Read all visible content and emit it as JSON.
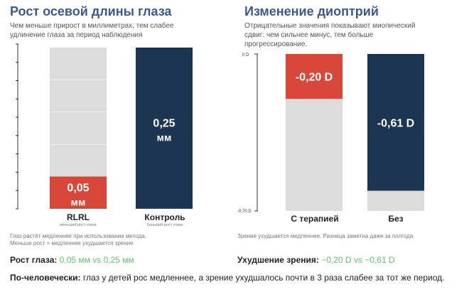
{
  "left_panel": {
    "title": "Рост осевой длины глаза",
    "subtitle_line1": "Чем меньше прирост в миллиметрах, тем слабее",
    "subtitle_line2": "удлинение глаза за период наблюдения",
    "note_line1": "Глаз растёт медленнее при использовании метода.",
    "note_line2": "Меньше рост = медленнее ухудшается зрение"
  },
  "right_panel": {
    "title": "Изменение диоптрий",
    "subtitle_line1": "Отрицательные значения показывают миопический",
    "subtitle_line2": "сдвиг: чем сильнее минус, тем больше",
    "subtitle_line3": "прогрессирование.",
    "note": "Зрение ухудшается медленнее. Разница заметна даже за полгода"
  },
  "summary": {
    "growth_label": "Рост глаза:",
    "growth_value": "0,05 мм vs 0,25 мм",
    "vision_label": "Ухудшение зрения:",
    "vision_value": "−0,20 D vs −0,61 D"
  },
  "bottom": {
    "label": "По-человечески:",
    "text": " глаз у детей рос медленнее, а зрение ухудшалось почти в 3 раза слабее за тот же период."
  },
  "colors": {
    "rlrl": "#d9473a",
    "control": "#1c3553",
    "track": "#dcdcdc",
    "accent_title": "#3a5a8c",
    "highlight": "#5fc46a"
  },
  "chart_data": [
    {
      "type": "bar",
      "title": "Рост осевой длины глаза",
      "categories": [
        "RLRL",
        "Контроль"
      ],
      "category_sublabels": [
        "меньший рост глаза",
        "больший рост глаза"
      ],
      "values": [
        0.05,
        0.25
      ],
      "value_labels": [
        [
          "0,05",
          "мм"
        ],
        [
          "0,25",
          "мм"
        ]
      ],
      "ylim": [
        0,
        0.25
      ],
      "colors": [
        "#d9473a",
        "#1c3553"
      ]
    },
    {
      "type": "bar",
      "title": "Изменение диоптрий",
      "categories": [
        "С терапией",
        "Без"
      ],
      "values": [
        -0.2,
        -0.61
      ],
      "value_labels": [
        "-0,20 D",
        "-0,61 D"
      ],
      "ylim": [
        -0.7,
        0
      ],
      "ytick_labels": [
        "0 D",
        "-0,70 D"
      ],
      "colors": [
        "#d9473a",
        "#1c3553"
      ]
    }
  ]
}
